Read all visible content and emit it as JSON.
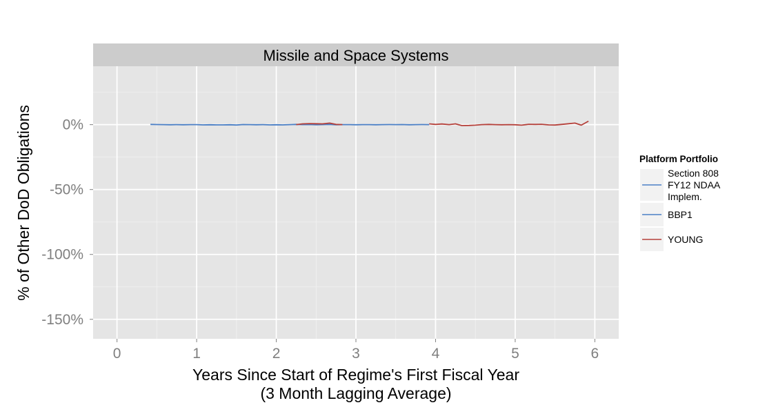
{
  "chart_data": {
    "type": "line",
    "title": "Missile and Space Systems",
    "xlabel": "Years Since Start of Regime's First Fiscal Year",
    "xlabel_line2": "(3 Month Lagging Average)",
    "ylabel": "% of Other DoD Obligations",
    "xlim": [
      -0.3,
      6.3
    ],
    "ylim": [
      -165,
      45
    ],
    "x_ticks": [
      0,
      1,
      2,
      3,
      4,
      5,
      6
    ],
    "x_tick_labels": [
      "0",
      "1",
      "2",
      "3",
      "4",
      "5",
      "6"
    ],
    "y_ticks": [
      0,
      -50,
      -100,
      -150
    ],
    "y_tick_labels": [
      "0%",
      "-50%",
      "-100%",
      "-150%"
    ],
    "grid": true,
    "legend_title": "Platform Portfolio",
    "legend_placement": "right",
    "series": [
      {
        "name": "Section 808 FY12 NDAA Implem.",
        "name_lines": [
          "Section 808",
          "FY12 NDAA",
          "Implem."
        ],
        "color": "#4a7fc6",
        "x": [],
        "y": []
      },
      {
        "name": "BBP1",
        "color": "#4a7fc6",
        "x": [
          0.42,
          0.5,
          0.58,
          0.67,
          0.75,
          0.83,
          0.92,
          1.0,
          1.08,
          1.17,
          1.25,
          1.33,
          1.42,
          1.5,
          1.58,
          1.67,
          1.75,
          1.83,
          1.92,
          2.0,
          2.08,
          2.17,
          2.25,
          2.33,
          2.42,
          2.5,
          2.58,
          2.67,
          2.75,
          2.83,
          2.92,
          3.0,
          3.08,
          3.17,
          3.25,
          3.33,
          3.42,
          3.5,
          3.58,
          3.67,
          3.75,
          3.83,
          3.92
        ],
        "y": [
          0.2,
          0.1,
          0.0,
          -0.1,
          0.0,
          -0.1,
          0.0,
          0.0,
          -0.2,
          -0.1,
          -0.2,
          -0.2,
          -0.1,
          -0.3,
          0.1,
          0.0,
          -0.1,
          0.0,
          -0.2,
          -0.1,
          -0.2,
          0.0,
          0.2,
          0.0,
          0.1,
          -0.1,
          0.0,
          0.2,
          -0.1,
          0.0,
          0.0,
          -0.1,
          0.0,
          0.0,
          -0.1,
          0.0,
          0.1,
          0.0,
          0.1,
          -0.1,
          0.0,
          0.1,
          0.0
        ]
      },
      {
        "name": "YOUNG",
        "color": "#b5403a",
        "x": [
          2.25,
          2.33,
          2.42,
          2.5,
          2.58,
          2.67,
          2.75,
          2.83,
          3.92,
          4.0,
          4.08,
          4.17,
          4.25,
          4.33,
          4.42,
          4.5,
          4.58,
          4.67,
          4.75,
          4.83,
          4.92,
          5.0,
          5.08,
          5.17,
          5.25,
          5.33,
          5.42,
          5.5,
          5.58,
          5.67,
          5.75,
          5.83,
          5.92
        ],
        "y": [
          0.0,
          0.6,
          0.8,
          0.7,
          0.6,
          1.2,
          0.2,
          0.0,
          0.6,
          0.2,
          0.5,
          0.0,
          0.6,
          -0.7,
          -0.6,
          -0.4,
          0.0,
          0.2,
          0.0,
          -0.1,
          0.0,
          -0.1,
          -0.4,
          0.3,
          0.2,
          0.3,
          -0.2,
          -0.3,
          0.2,
          0.7,
          1.2,
          -0.4,
          2.7
        ]
      }
    ]
  }
}
